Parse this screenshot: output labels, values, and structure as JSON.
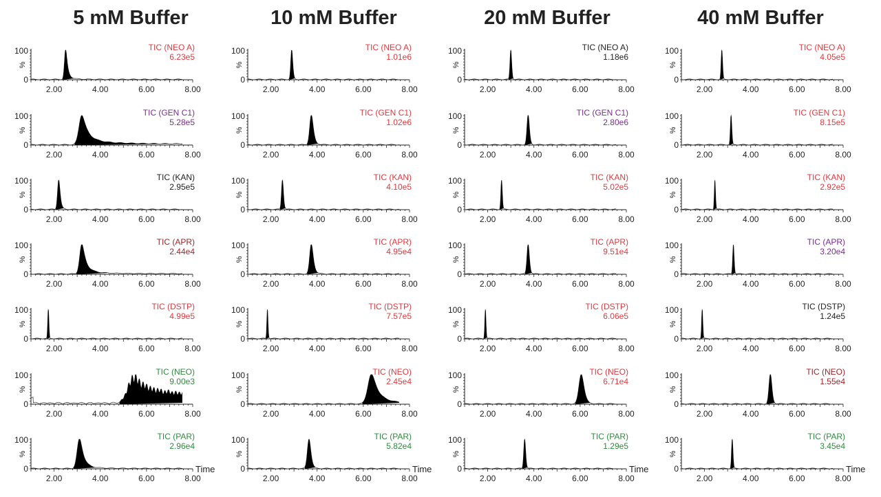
{
  "chart_data": [
    {
      "type": "line",
      "title": "5 mM Buffer",
      "x_range": [
        1.0,
        8.0
      ],
      "x_ticks": [
        "2.00",
        "4.00",
        "6.00",
        "8.00"
      ],
      "y_ticks": [
        "0",
        "100"
      ],
      "ylabel": "%",
      "xlabel": "Time",
      "panels": [
        {
          "label": "TIC (NEO A)",
          "intensity": "6.23e5",
          "color": "#e0393e",
          "peak_rt": 2.5,
          "peak_width": 0.05,
          "tail": 0.25
        },
        {
          "label": "TIC (GEN C1)",
          "intensity": "5.28e5",
          "color": "#7b2d8e",
          "peak_rt": 3.2,
          "peak_width": 0.12,
          "tail": 0.35
        },
        {
          "label": "TIC (KAN)",
          "intensity": "2.95e5",
          "color": "#222222",
          "peak_rt": 2.2,
          "peak_width": 0.05,
          "tail": 0.15
        },
        {
          "label": "TIC (APR)",
          "intensity": "2.44e4",
          "color": "#a0252b",
          "peak_rt": 3.2,
          "peak_width": 0.09,
          "tail": 0.3
        },
        {
          "label": "TIC (DSTP)",
          "intensity": "4.99e5",
          "color": "#e0393e",
          "peak_rt": 1.75,
          "peak_width": 0.025,
          "tail": 0.03
        },
        {
          "label": "TIC (NEO)",
          "intensity": "9.00e3",
          "color": "#2e8b3e",
          "peak_rt": 5.45,
          "peak_width": 0.25,
          "tail": 0.6
        },
        {
          "label": "TIC (PAR)",
          "intensity": "2.96e4",
          "color": "#2e8b3e",
          "peak_rt": 3.1,
          "peak_width": 0.1,
          "tail": 0.25
        }
      ]
    },
    {
      "type": "line",
      "title": "10 mM Buffer",
      "x_range": [
        1.0,
        8.0
      ],
      "x_ticks": [
        "2.00",
        "4.00",
        "6.00",
        "8.00"
      ],
      "y_ticks": [
        "0",
        "100"
      ],
      "ylabel": "%",
      "xlabel": "Time",
      "panels": [
        {
          "label": "TIC (NEO A)",
          "intensity": "1.01e6",
          "color": "#e0393e",
          "peak_rt": 2.9,
          "peak_width": 0.04,
          "tail": 0.1
        },
        {
          "label": "TIC (GEN C1)",
          "intensity": "1.02e6",
          "color": "#e0393e",
          "peak_rt": 3.75,
          "peak_width": 0.07,
          "tail": 0.15
        },
        {
          "label": "TIC (KAN)",
          "intensity": "4.10e5",
          "color": "#e0393e",
          "peak_rt": 2.5,
          "peak_width": 0.04,
          "tail": 0.08
        },
        {
          "label": "TIC (APR)",
          "intensity": "4.95e4",
          "color": "#e0393e",
          "peak_rt": 3.75,
          "peak_width": 0.07,
          "tail": 0.15
        },
        {
          "label": "TIC (DSTP)",
          "intensity": "7.57e5",
          "color": "#e0393e",
          "peak_rt": 1.85,
          "peak_width": 0.025,
          "tail": 0.04
        },
        {
          "label": "TIC (NEO)",
          "intensity": "2.45e4",
          "color": "#e0393e",
          "peak_rt": 6.35,
          "peak_width": 0.15,
          "tail": 0.3
        },
        {
          "label": "TIC (PAR)",
          "intensity": "5.82e4",
          "color": "#2e8b3e",
          "peak_rt": 3.65,
          "peak_width": 0.07,
          "tail": 0.12
        }
      ]
    },
    {
      "type": "line",
      "title": "20 mM Buffer",
      "x_range": [
        1.0,
        8.0
      ],
      "x_ticks": [
        "2.00",
        "4.00",
        "6.00",
        "8.00"
      ],
      "y_ticks": [
        "0",
        "100"
      ],
      "ylabel": "%",
      "xlabel": "Time",
      "panels": [
        {
          "label": "TIC (NEO A)",
          "intensity": "1.18e6",
          "color": "#222222",
          "peak_rt": 3.0,
          "peak_width": 0.035,
          "tail": 0.06
        },
        {
          "label": "TIC (GEN C1)",
          "intensity": "2.80e6",
          "color": "#7b2d8e",
          "peak_rt": 3.75,
          "peak_width": 0.05,
          "tail": 0.08
        },
        {
          "label": "TIC (KAN)",
          "intensity": "5.02e5",
          "color": "#e0393e",
          "peak_rt": 2.6,
          "peak_width": 0.03,
          "tail": 0.04
        },
        {
          "label": "TIC (APR)",
          "intensity": "9.51e4",
          "color": "#e0393e",
          "peak_rt": 3.75,
          "peak_width": 0.05,
          "tail": 0.08
        },
        {
          "label": "TIC (DSTP)",
          "intensity": "6.06e5",
          "color": "#e0393e",
          "peak_rt": 1.9,
          "peak_width": 0.025,
          "tail": 0.03
        },
        {
          "label": "TIC (NEO)",
          "intensity": "6.71e4",
          "color": "#e0393e",
          "peak_rt": 6.05,
          "peak_width": 0.1,
          "tail": 0.12
        },
        {
          "label": "TIC (PAR)",
          "intensity": "1.29e5",
          "color": "#2e8b3e",
          "peak_rt": 3.6,
          "peak_width": 0.04,
          "tail": 0.06
        }
      ]
    },
    {
      "type": "line",
      "title": "40 mM Buffer",
      "x_range": [
        1.0,
        8.0
      ],
      "x_ticks": [
        "2.00",
        "4.00",
        "6.00",
        "8.00"
      ],
      "y_ticks": [
        "0",
        "100"
      ],
      "ylabel": "%",
      "xlabel": "Time",
      "panels": [
        {
          "label": "TIC (NEO A)",
          "intensity": "4.05e5",
          "color": "#e0393e",
          "peak_rt": 2.75,
          "peak_width": 0.03,
          "tail": 0.04
        },
        {
          "label": "TIC (GEN C1)",
          "intensity": "8.15e5",
          "color": "#e0393e",
          "peak_rt": 3.15,
          "peak_width": 0.03,
          "tail": 0.05
        },
        {
          "label": "TIC (KAN)",
          "intensity": "2.92e5",
          "color": "#e0393e",
          "peak_rt": 2.45,
          "peak_width": 0.025,
          "tail": 0.04
        },
        {
          "label": "TIC (APR)",
          "intensity": "3.20e4",
          "color": "#7b2d8e",
          "peak_rt": 3.25,
          "peak_width": 0.03,
          "tail": 0.05
        },
        {
          "label": "TIC (DSTP)",
          "intensity": "1.24e5",
          "color": "#222222",
          "peak_rt": 1.9,
          "peak_width": 0.025,
          "tail": 0.03
        },
        {
          "label": "TIC (NEO)",
          "intensity": "1.55e4",
          "color": "#a0252b",
          "peak_rt": 4.85,
          "peak_width": 0.06,
          "tail": 0.08
        },
        {
          "label": "TIC (PAR)",
          "intensity": "3.45e4",
          "color": "#2e8b3e",
          "peak_rt": 3.2,
          "peak_width": 0.03,
          "tail": 0.05
        }
      ]
    }
  ]
}
